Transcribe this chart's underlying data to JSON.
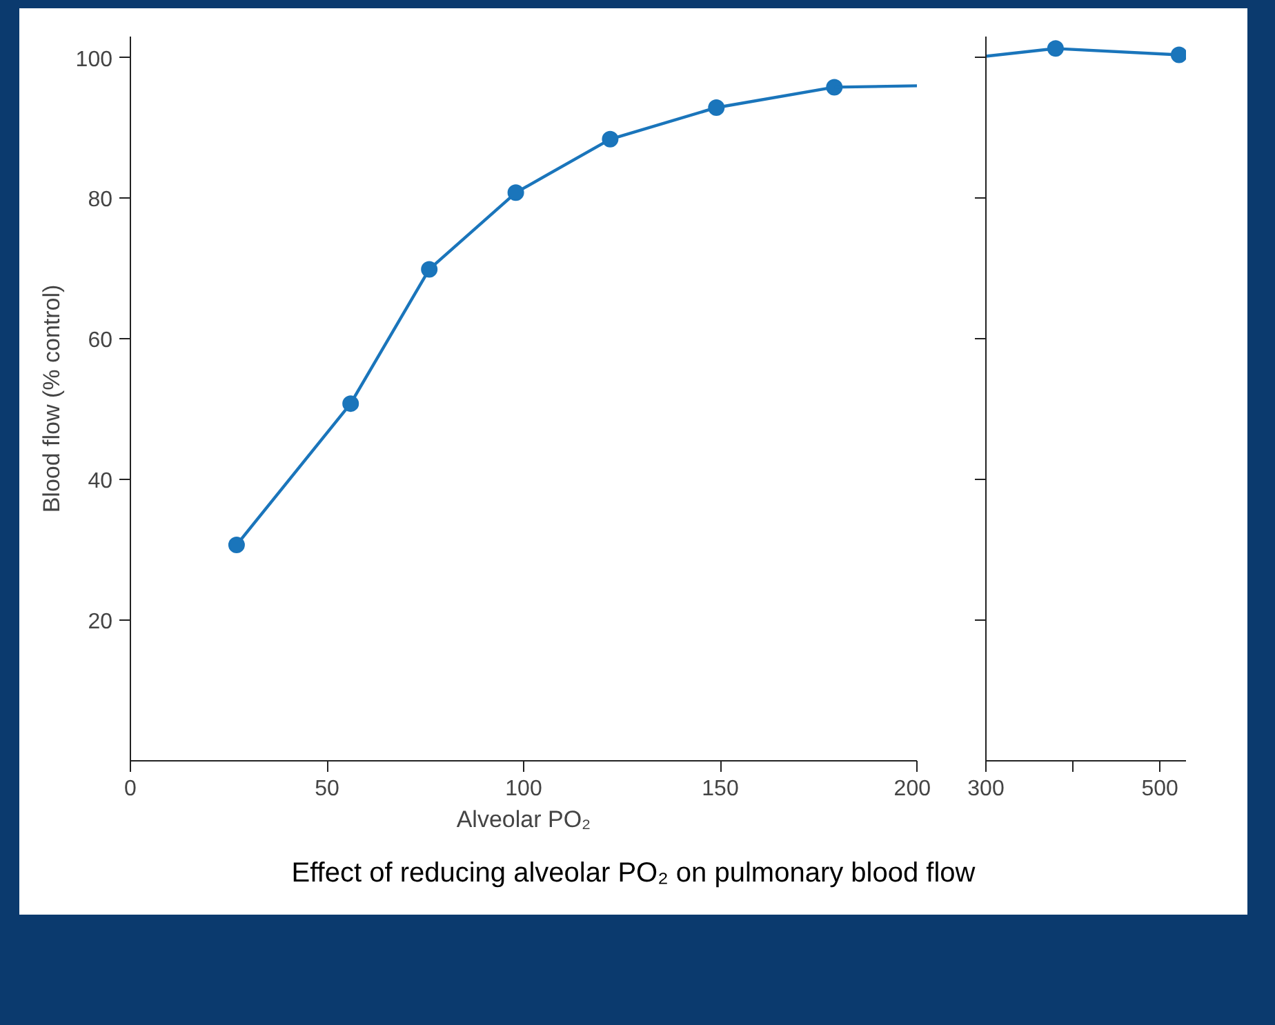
{
  "chart_data": [
    {
      "type": "line",
      "ylabel": "Blood flow (% control)",
      "xlabel": "Alveolar PO₂",
      "title": "Effect of reducing alveolar PO₂ on pulmonary blood flow",
      "xlim": [
        0,
        200
      ],
      "xticks": [
        0,
        50,
        100,
        150,
        200
      ],
      "ylim": [
        0,
        103
      ],
      "yticks": [
        20,
        40,
        60,
        80,
        100
      ],
      "grid": false,
      "series": [
        {
          "color": "#1a75bb",
          "marker": "circle",
          "x": [
            27,
            56,
            76,
            98,
            122,
            149,
            179
          ],
          "values": [
            30.7,
            50.8,
            69.9,
            80.8,
            88.4,
            92.9,
            95.8
          ]
        },
        {
          "color": "#1a75bb",
          "marker": "none",
          "x": [
            179,
            200
          ],
          "values": [
            95.8,
            96
          ]
        }
      ]
    },
    {
      "type": "line",
      "xlim": [
        300,
        530
      ],
      "xticks": [
        300,
        {
          "value": 400,
          "label": null
        },
        500
      ],
      "ylim": [
        0,
        103
      ],
      "yticks": [
        20,
        40,
        60,
        80,
        100
      ],
      "tick_labels": "x",
      "grid": false,
      "series": [
        {
          "color": "#1a75bb",
          "x": [
            300,
            380
          ],
          "values": [
            100.2,
            101.3
          ]
        },
        {
          "color": "#1a75bb",
          "marker": "circle",
          "x": [
            380,
            522
          ],
          "values": [
            101.3,
            100.4
          ]
        }
      ]
    }
  ]
}
